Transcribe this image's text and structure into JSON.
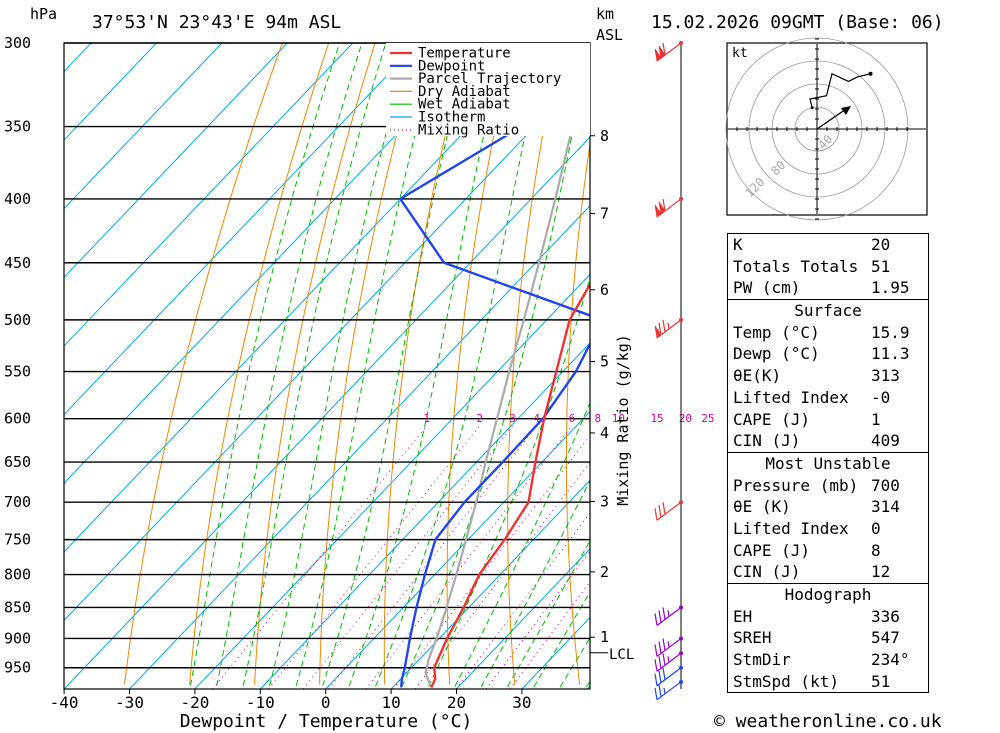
{
  "header": {
    "hpa_label": "hPa",
    "location": "37°53'N  23°43'E  94m  ASL",
    "km_label": "km",
    "asl_label": "ASL",
    "datetime": "15.02.2026  09GMT  (Base: 06)"
  },
  "footer": {
    "copyright": "© weatheronline.co.uk"
  },
  "colors": {
    "temperature": "#ee3333",
    "dewpoint": "#2244ee",
    "parcel": "#aaaaaa",
    "dry_adiabat": "#ee8800",
    "wet_adiabat": "#00bb00",
    "isotherm": "#00aaee",
    "mixing_ratio": "#dd0088"
  },
  "chart_data": {
    "type": "line",
    "title": "Skew-T log-P diagram",
    "xlabel": "Dewpoint / Temperature (°C)",
    "ylabel": "hPa",
    "xlim": [
      -40,
      40
    ],
    "x_ticks": [
      "-40",
      "-30",
      "-20",
      "-10",
      "0",
      "10",
      "20",
      "30"
    ],
    "pressure_levels": [
      "300",
      "350",
      "400",
      "450",
      "500",
      "550",
      "600",
      "650",
      "700",
      "750",
      "800",
      "850",
      "900",
      "950"
    ],
    "height_km_labels": [
      "8",
      "7",
      "6",
      "5",
      "4",
      "3",
      "2",
      "1"
    ],
    "lcl_label": "LCL",
    "mixing_ratio_axis_label": "Mixing Ratio (g/kg)",
    "mixing_ratio_labels": [
      "1",
      "2",
      "3",
      "4",
      "6",
      "8",
      "10",
      "15",
      "20",
      "25"
    ],
    "legend": [
      "Temperature",
      "Dewpoint",
      "Parcel Trajectory",
      "Dry Adiabat",
      "Wet Adiabat",
      "Isotherm",
      "Mixing Ratio"
    ],
    "series": [
      {
        "name": "Temperature",
        "points": [
          [
            985,
            15.9
          ],
          [
            970,
            15.3
          ],
          [
            950,
            13.5
          ],
          [
            900,
            11.2
          ],
          [
            850,
            9.2
          ],
          [
            800,
            6.8
          ],
          [
            750,
            5.6
          ],
          [
            700,
            3.8
          ],
          [
            650,
            -1.0
          ],
          [
            600,
            -6.0
          ],
          [
            550,
            -11.0
          ],
          [
            500,
            -16.5
          ],
          [
            450,
            -19.8
          ],
          [
            400,
            -24.5
          ],
          [
            350,
            -33.5
          ],
          [
            300,
            -42.0
          ]
        ]
      },
      {
        "name": "Dewpoint",
        "points": [
          [
            985,
            11.3
          ],
          [
            970,
            10.2
          ],
          [
            950,
            9.0
          ],
          [
            900,
            5.5
          ],
          [
            850,
            2.0
          ],
          [
            800,
            -1.5
          ],
          [
            750,
            -5.0
          ],
          [
            700,
            -6.0
          ],
          [
            650,
            -6.0
          ],
          [
            600,
            -6.2
          ],
          [
            550,
            -8.0
          ],
          [
            500,
            -11.5
          ],
          [
            450,
            -44.0
          ],
          [
            400,
            -60.0
          ],
          [
            350,
            -52.0
          ],
          [
            300,
            -55.0
          ]
        ]
      },
      {
        "name": "Parcel Trajectory",
        "points": [
          [
            985,
            15.9
          ],
          [
            960,
            13.0
          ],
          [
            935,
            11.4
          ],
          [
            900,
            9.6
          ],
          [
            850,
            6.6
          ],
          [
            800,
            3.3
          ],
          [
            750,
            -0.3
          ],
          [
            700,
            -4.2
          ],
          [
            650,
            -8.6
          ],
          [
            600,
            -13.2
          ],
          [
            550,
            -18.2
          ],
          [
            500,
            -23.5
          ],
          [
            450,
            -29.5
          ],
          [
            400,
            -36.3
          ],
          [
            350,
            -44.2
          ],
          [
            300,
            -53.0
          ]
        ]
      }
    ]
  },
  "hodograph": {
    "unit_label": "kt",
    "ring_labels": [
      "40",
      "80",
      "120"
    ],
    "points": [
      [
        0.2,
        1.2
      ],
      [
        0.0,
        2.0
      ],
      [
        1.5,
        2.3
      ],
      [
        2.0,
        4.3
      ],
      [
        3.5,
        3.6
      ],
      [
        4.3,
        4.0
      ],
      [
        5.5,
        4.3
      ]
    ]
  },
  "wind_barbs": [
    {
      "pressure": 300,
      "speed": 110
    },
    {
      "pressure": 400,
      "speed": 110
    },
    {
      "pressure": 500,
      "speed": 75
    },
    {
      "pressure": 700,
      "speed": 30
    },
    {
      "pressure": 850,
      "speed": 35
    },
    {
      "pressure": 900,
      "speed": 35
    },
    {
      "pressure": 925,
      "speed": 35
    },
    {
      "pressure": 950,
      "speed": 30
    },
    {
      "pressure": 975,
      "speed": 25
    }
  ],
  "stats": {
    "k_label": "K",
    "k": "20",
    "tt_label": "Totals Totals",
    "tt": "51",
    "pw_label": "PW (cm)",
    "pw": "1.95",
    "surface": {
      "title": "Surface",
      "temp_label": "Temp (°C)",
      "temp": "15.9",
      "dewp_label": "Dewp (°C)",
      "dewp": "11.3",
      "theta_e_label": "θE(K)",
      "theta_e": "313",
      "li_label": "Lifted Index",
      "li": "-0",
      "cape_label": "CAPE (J)",
      "cape": "1",
      "cin_label": "CIN (J)",
      "cin": "409"
    },
    "most_unstable": {
      "title": "Most Unstable",
      "pressure_label": "Pressure (mb)",
      "pressure": "700",
      "theta_e_label": "θE (K)",
      "theta_e": "314",
      "li_label": "Lifted Index",
      "li": "0",
      "cape_label": "CAPE (J)",
      "cape": "8",
      "cin_label": "CIN (J)",
      "cin": "12"
    },
    "hodograph": {
      "title": "Hodograph",
      "eh_label": "EH",
      "eh": "336",
      "sreh_label": "SREH",
      "sreh": "547",
      "stmdir_label": "StmDir",
      "stmdir": "234°",
      "stmspd_label": "StmSpd (kt)",
      "stmspd": "51"
    }
  }
}
